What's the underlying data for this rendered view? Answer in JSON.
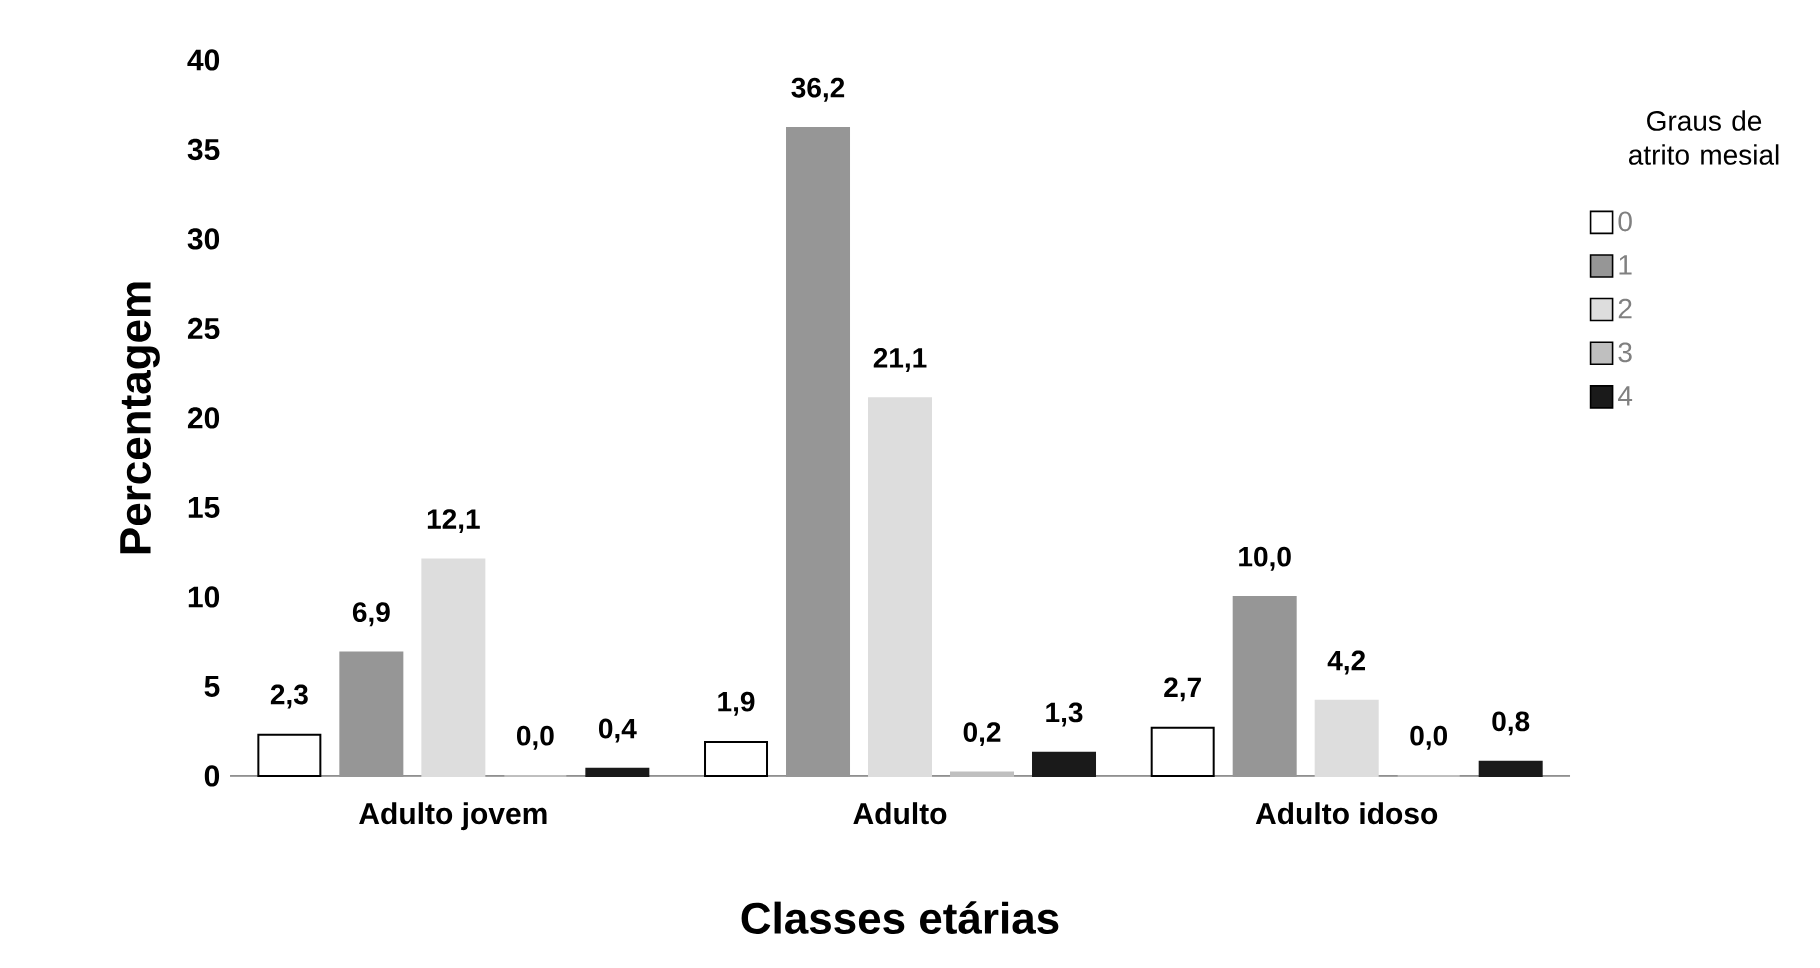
{
  "chart_data": {
    "type": "bar",
    "xlabel": "Classes etárias",
    "ylabel": "Percentagem",
    "legend_title": "Graus de atrito mesial",
    "categories": [
      "Adulto jovem",
      "Adulto",
      "Adulto idoso"
    ],
    "series": [
      {
        "name": "0",
        "color": "#ffffff",
        "values": [
          2.3,
          1.9,
          2.7
        ],
        "value_labels": [
          "2,3",
          "1,9",
          "2,7"
        ]
      },
      {
        "name": "1",
        "color": "#969696",
        "values": [
          6.9,
          36.2,
          10.0
        ],
        "value_labels": [
          "6,9",
          "36,2",
          "10,0"
        ]
      },
      {
        "name": "2",
        "color": "#dddddd",
        "values": [
          12.1,
          21.1,
          4.2
        ],
        "value_labels": [
          "12,1",
          "21,1",
          "4,2"
        ]
      },
      {
        "name": "3",
        "color": "#bfbfbf",
        "values": [
          0.0,
          0.2,
          0.0
        ],
        "value_labels": [
          "0,0",
          "0,2",
          "0,0"
        ]
      },
      {
        "name": "4",
        "color": "#1a1a1a",
        "values": [
          0.4,
          1.3,
          0.8
        ],
        "value_labels": [
          "0,4",
          "1,3",
          "0,8"
        ]
      }
    ],
    "ylim": [
      0,
      40
    ],
    "yticks": [
      0,
      5,
      10,
      15,
      20,
      25,
      30,
      35,
      40
    ],
    "grid": false,
    "legend": "right"
  }
}
